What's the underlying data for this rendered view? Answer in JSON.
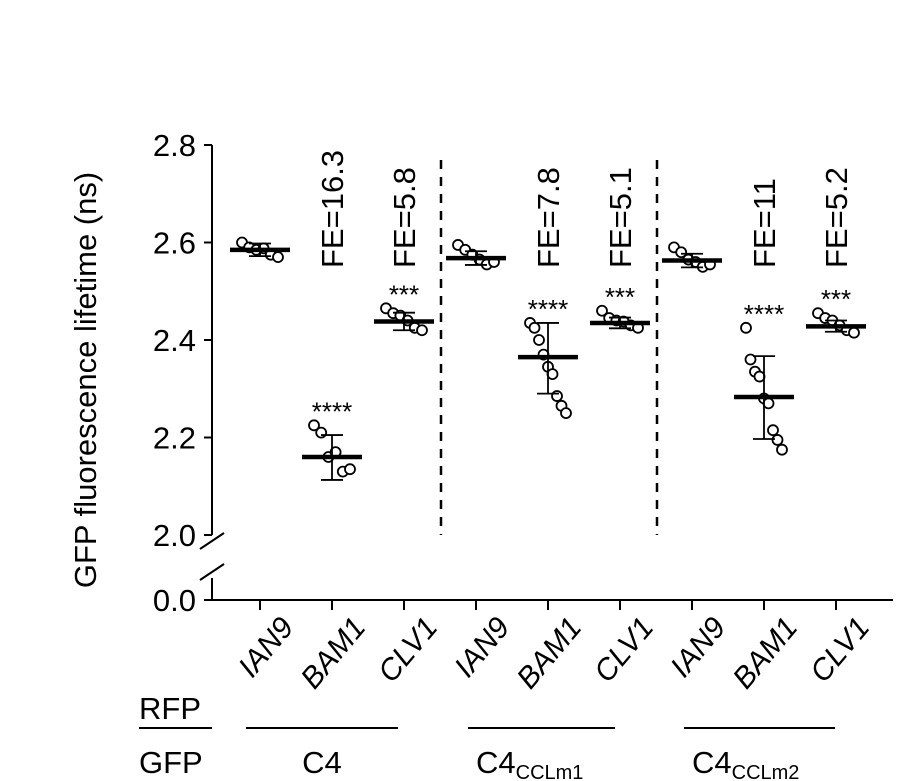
{
  "chart_data": {
    "type": "scatter",
    "ylabel": "GFP fluorescence lifetime (ns)",
    "y_ticks": [
      "2.8",
      "2.6",
      "2.4",
      "2.2",
      "2.0",
      "0.0"
    ],
    "ylim": [
      2.0,
      2.8
    ],
    "axis_break": true,
    "row_labels": {
      "rfp": "RFP",
      "gfp": "GFP"
    },
    "groups": [
      {
        "name": "C4",
        "sub": ""
      },
      {
        "name": "C4",
        "sub": "CCLm1"
      },
      {
        "name": "C4",
        "sub": "CCLm2"
      }
    ],
    "categories": [
      {
        "rfp": "IAN9",
        "group": 0,
        "fe": "",
        "sig": "",
        "mean": 2.585,
        "sd_low": 2.572,
        "sd_high": 2.598,
        "points": [
          2.6,
          2.59,
          2.585,
          2.588,
          2.575,
          2.57
        ]
      },
      {
        "rfp": "BAM1",
        "group": 0,
        "fe": "FE=16.3",
        "sig": "****",
        "mean": 2.16,
        "sd_low": 2.113,
        "sd_high": 2.205,
        "points": [
          2.225,
          2.21,
          2.16,
          2.17,
          2.13,
          2.135
        ]
      },
      {
        "rfp": "CLV1",
        "group": 0,
        "fe": "FE=5.8",
        "sig": "***",
        "mean": 2.438,
        "sd_low": 2.42,
        "sd_high": 2.456,
        "points": [
          2.465,
          2.455,
          2.45,
          2.44,
          2.425,
          2.42
        ]
      },
      {
        "rfp": "IAN9",
        "group": 1,
        "fe": "",
        "sig": "",
        "mean": 2.568,
        "sd_low": 2.554,
        "sd_high": 2.582,
        "points": [
          2.595,
          2.585,
          2.575,
          2.565,
          2.555,
          2.56
        ]
      },
      {
        "rfp": "BAM1",
        "group": 1,
        "fe": "FE=7.8",
        "sig": "****",
        "mean": 2.365,
        "sd_low": 2.29,
        "sd_high": 2.435,
        "points": [
          2.435,
          2.425,
          2.4,
          2.37,
          2.345,
          2.33,
          2.285,
          2.265,
          2.25
        ]
      },
      {
        "rfp": "CLV1",
        "group": 1,
        "fe": "FE=5.1",
        "sig": "***",
        "mean": 2.435,
        "sd_low": 2.424,
        "sd_high": 2.446,
        "points": [
          2.46,
          2.445,
          2.44,
          2.438,
          2.43,
          2.425
        ]
      },
      {
        "rfp": "IAN9",
        "group": 2,
        "fe": "",
        "sig": "",
        "mean": 2.563,
        "sd_low": 2.549,
        "sd_high": 2.577,
        "points": [
          2.59,
          2.58,
          2.565,
          2.56,
          2.55,
          2.555
        ]
      },
      {
        "rfp": "BAM1",
        "group": 2,
        "fe": "FE=11",
        "sig": "****",
        "mean": 2.283,
        "sd_low": 2.197,
        "sd_high": 2.367,
        "points": [
          2.425,
          2.36,
          2.335,
          2.325,
          2.28,
          2.27,
          2.215,
          2.195,
          2.175
        ]
      },
      {
        "rfp": "CLV1",
        "group": 2,
        "fe": "FE=5.2",
        "sig": "***",
        "mean": 2.428,
        "sd_low": 2.417,
        "sd_high": 2.44,
        "points": [
          2.455,
          2.445,
          2.44,
          2.43,
          2.42,
          2.415
        ]
      }
    ]
  }
}
